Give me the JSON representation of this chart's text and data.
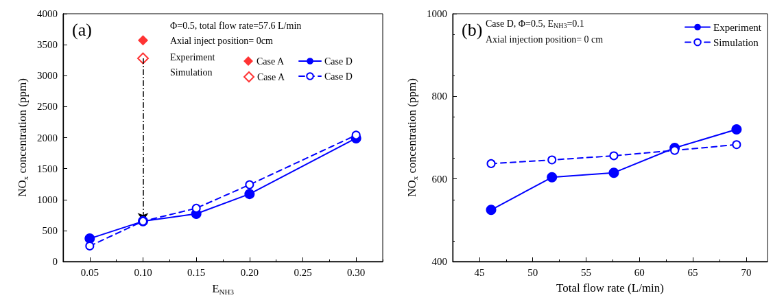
{
  "chart_data": [
    {
      "type": "line",
      "xlabel": "E$_{NH3}$",
      "ylabel": "NO$_{x}$ concentration (ppm)",
      "xlim": [
        0.025,
        0.325
      ],
      "xticks": [
        {
          "value": 0.05,
          "label": "0.05"
        },
        {
          "value": 0.1,
          "label": "0.10"
        },
        {
          "value": 0.15,
          "label": "0.15"
        },
        {
          "value": 0.2,
          "label": "0.20"
        },
        {
          "value": 0.25,
          "label": "0.25"
        },
        {
          "value": 0.3,
          "label": "0.30"
        }
      ],
      "ylim": [
        0,
        4000
      ],
      "yticks": [
        0,
        500,
        1000,
        1500,
        2000,
        2500,
        3000,
        3500,
        4000
      ],
      "grid": false,
      "legend": "top right",
      "annotations": [
        "(a)",
        "Φ=0.5, total flow rate=57.6 L/min",
        "Axial inject position= 0cm",
        "Experiment",
        "Simulation"
      ],
      "series": [
        {
          "name": "Case A",
          "type": "scatter",
          "color": "#ff0000",
          "marker": "diamond",
          "x": [
            0.1
          ],
          "values": [
            3570
          ]
        },
        {
          "name": "Case A",
          "type": "scatter",
          "color": "#ff0000",
          "marker": "diamond",
          "x": [
            0.1
          ],
          "values": [
            3280
          ]
        },
        {
          "name": "Case D",
          "color": "#0000ff",
          "marker": "circle",
          "line_style": "solid",
          "x": [
            0.05,
            0.1,
            0.15,
            0.2,
            0.3
          ],
          "values": [
            370,
            650,
            770,
            1090,
            1990
          ]
        },
        {
          "name": "Case D",
          "color": "#0000ff",
          "marker": "circle",
          "line_style": "dashed",
          "x": [
            0.05,
            0.1,
            0.15,
            0.2,
            0.3
          ],
          "values": [
            250,
            650,
            860,
            1240,
            2040
          ]
        }
      ]
    },
    {
      "type": "line",
      "xlabel": "Total flow rate (L/min)",
      "ylabel": "NO$_{x}$ concentration (ppm)",
      "xlim": [
        42.5,
        72
      ],
      "xticks": [
        45,
        50,
        55,
        60,
        65,
        70
      ],
      "ylim": [
        400,
        1000
      ],
      "yticks": [
        400,
        600,
        800,
        1000
      ],
      "grid": false,
      "legend": "top right",
      "annotations": [
        "(b)",
        "Case D, Φ=0.5, E$_{NH3}$=0.1",
        "Axial injection position= 0 cm"
      ],
      "series": [
        {
          "name": "Experiment",
          "color": "#0000ff",
          "marker": "circle",
          "line_style": "solid",
          "x": [
            46.1,
            51.8,
            57.6,
            63.3,
            69.1
          ],
          "values": [
            525,
            604,
            615,
            675,
            720
          ]
        },
        {
          "name": "Simulation",
          "color": "#0000ff",
          "marker": "circle",
          "line_style": "dashed",
          "x": [
            46.1,
            51.8,
            57.6,
            63.3,
            69.1
          ],
          "values": [
            637,
            646,
            656,
            669,
            683
          ]
        }
      ]
    }
  ]
}
